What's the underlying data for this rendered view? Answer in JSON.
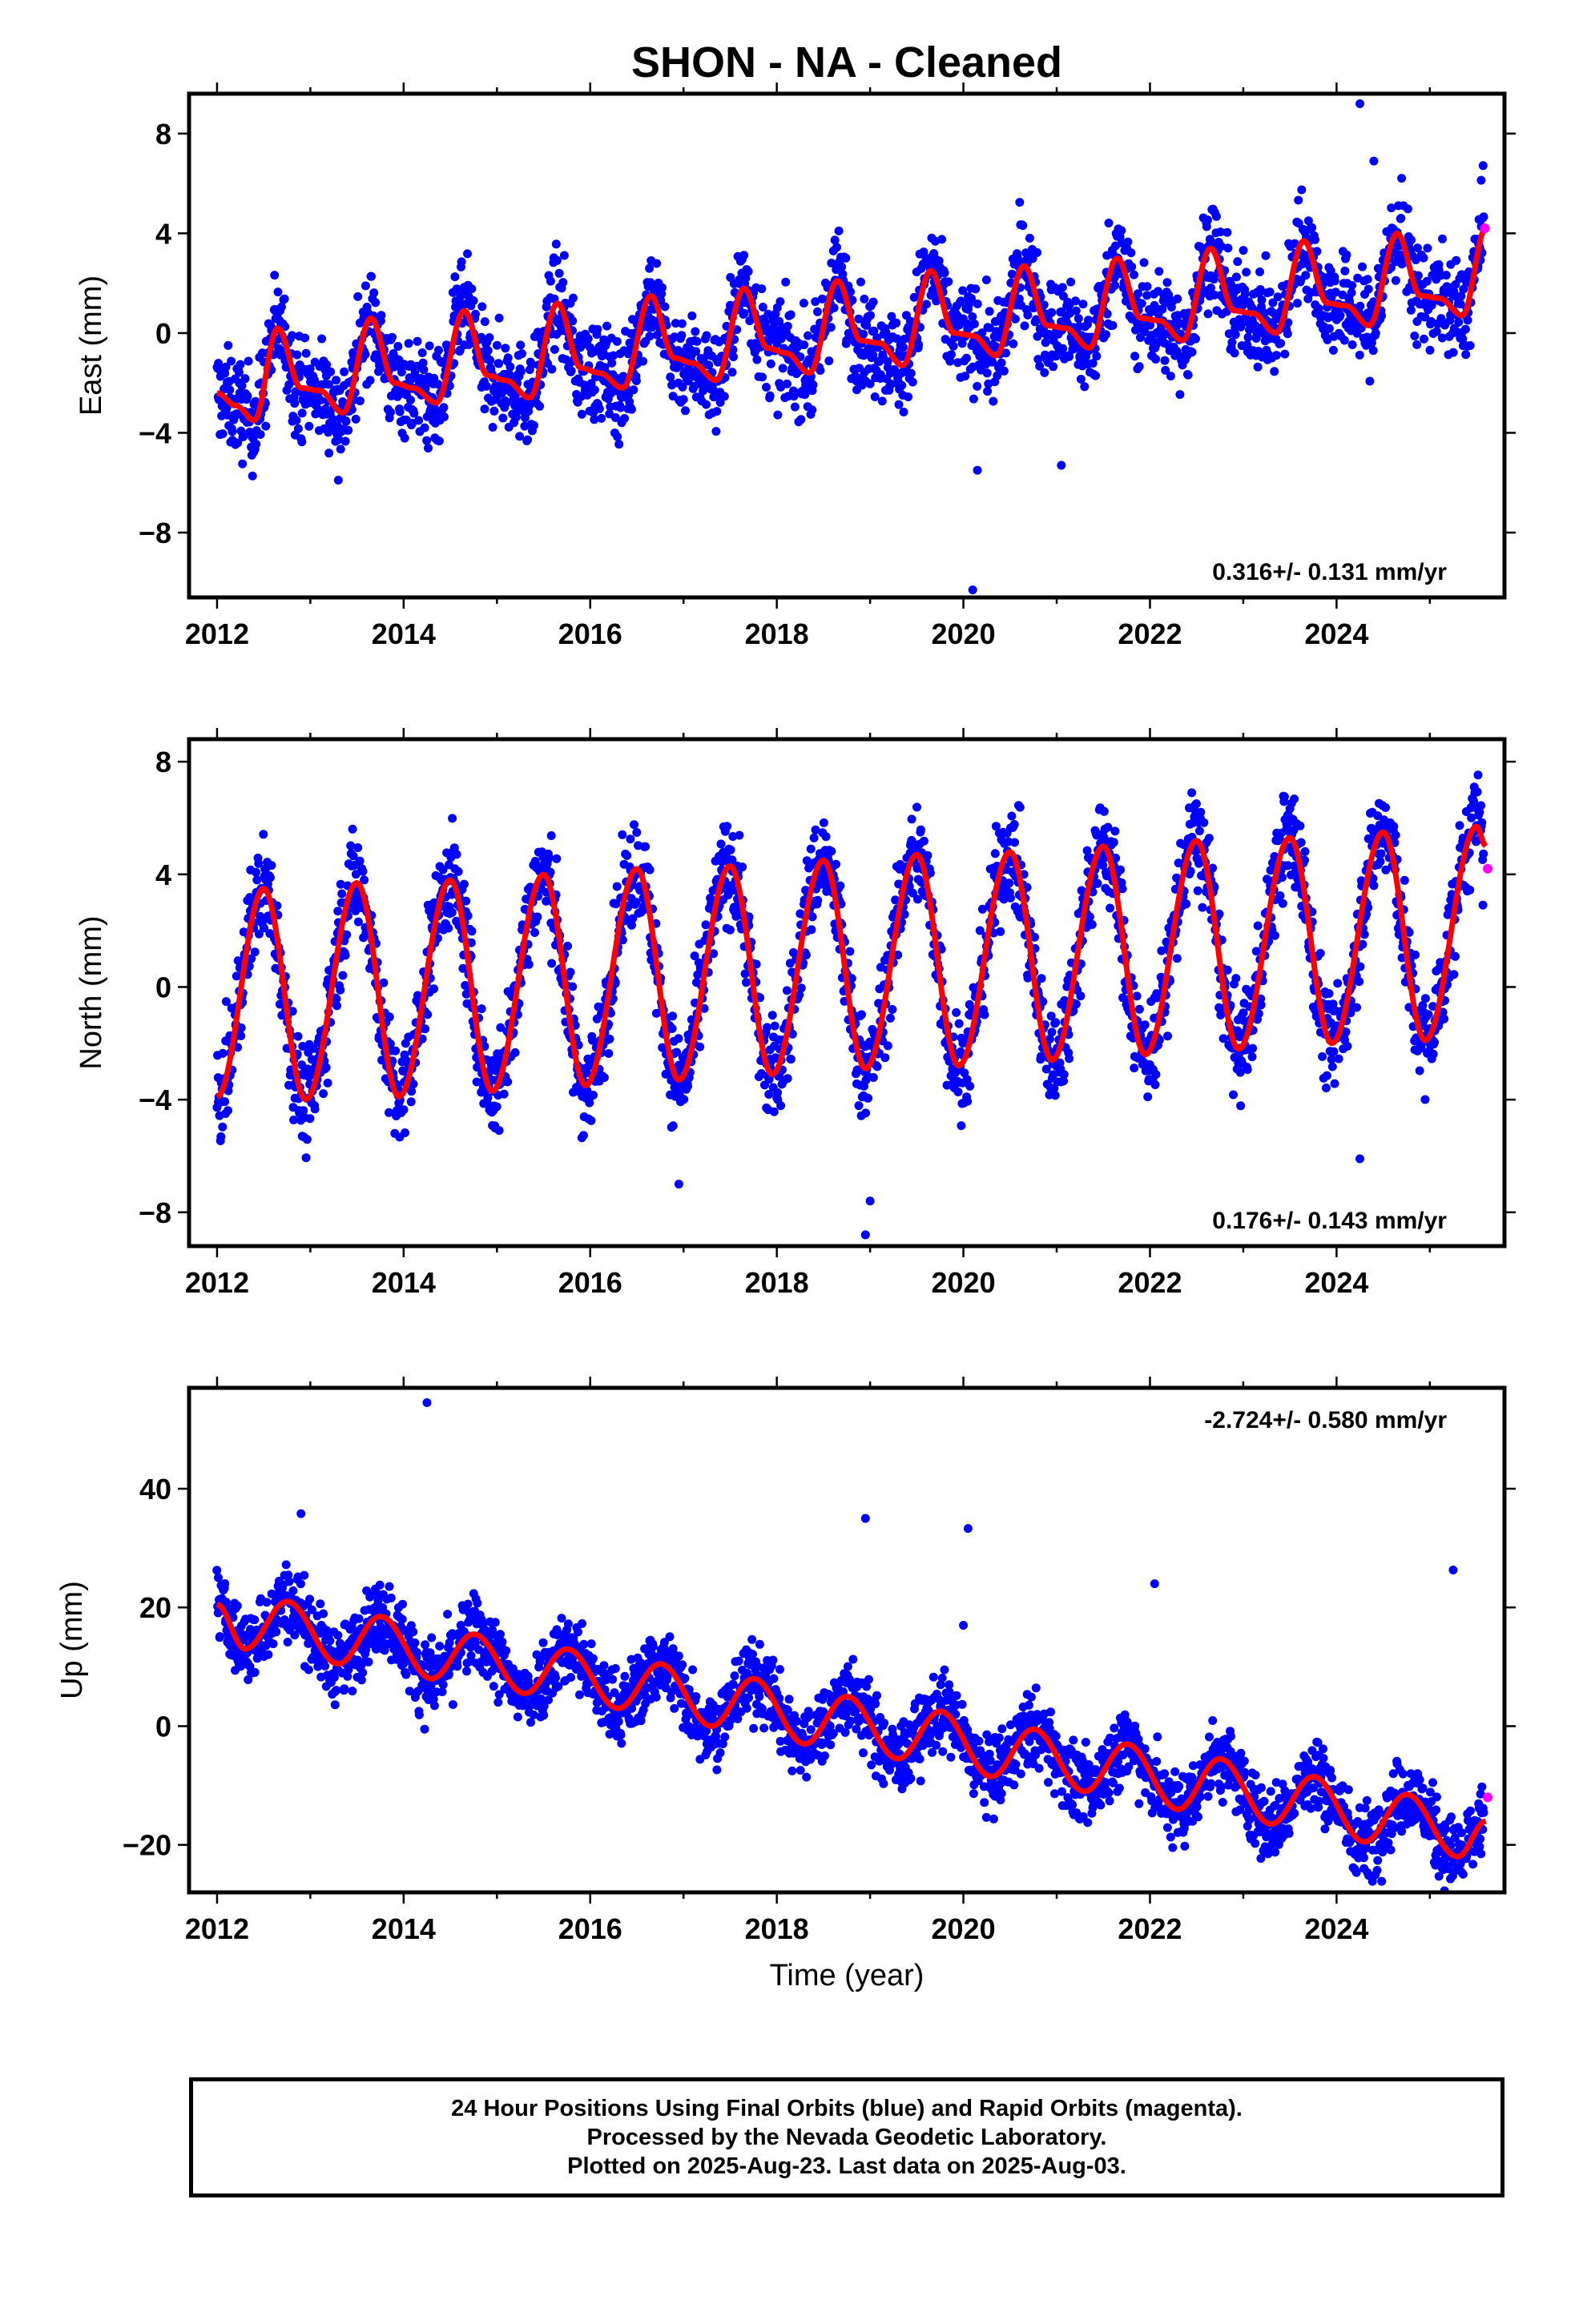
{
  "title": "SHON  - NA - Cleaned",
  "footer": {
    "line1": "24 Hour Positions Using Final Orbits (blue) and Rapid Orbits (magenta).",
    "line2": "Processed by the Nevada Geodetic Laboratory.",
    "line3": "Plotted on 2025-Aug-23. Last data on 2025-Aug-03."
  },
  "colors": {
    "final": "#0000ff",
    "rapid": "#ff00ff",
    "model": "#ff0000",
    "frame": "#000000"
  },
  "chart_data": [
    {
      "type": "scatter",
      "ylabel": "East (mm)",
      "xlabel": "",
      "rate_text": "0.316+/- 0.131 mm/yr",
      "rate_position": "bottom-right",
      "xlim": [
        2011.7,
        2025.8
      ],
      "ylim": [
        -10.6,
        9.6
      ],
      "xticks": [
        2012,
        2014,
        2016,
        2018,
        2020,
        2022,
        2024
      ],
      "xtick_labels": [
        "2012",
        "2014",
        "2016",
        "2018",
        "2020",
        "2022",
        "2024"
      ],
      "yticks": [
        -8,
        -4,
        0,
        4,
        8
      ],
      "ytick_labels": [
        "−8",
        "−4",
        "0",
        "4",
        "8"
      ],
      "model": {
        "x": [
          2012.0,
          2012.2,
          2012.4,
          2012.65,
          2012.9,
          2013.1,
          2013.35,
          2013.65,
          2013.9,
          2014.1,
          2014.35,
          2014.65,
          2014.9,
          2015.1,
          2015.35,
          2015.65,
          2015.9,
          2016.1,
          2016.35,
          2016.65,
          2016.9,
          2017.1,
          2017.35,
          2017.65,
          2017.9,
          2018.1,
          2018.35,
          2018.65,
          2018.9,
          2019.1,
          2019.35,
          2019.65,
          2019.9,
          2020.1,
          2020.35,
          2020.65,
          2020.9,
          2021.1,
          2021.35,
          2021.65,
          2021.9,
          2022.1,
          2022.35,
          2022.65,
          2022.9,
          2023.1,
          2023.35,
          2023.65,
          2023.9,
          2024.1,
          2024.35,
          2024.65,
          2024.9,
          2025.1,
          2025.35,
          2025.6
        ],
        "y": [
          -2.4,
          -2.9,
          -3.5,
          0.2,
          -2.2,
          -2.3,
          -3.2,
          0.6,
          -2.0,
          -2.2,
          -2.8,
          0.9,
          -1.7,
          -1.9,
          -2.6,
          1.2,
          -1.4,
          -1.6,
          -2.2,
          1.5,
          -1.0,
          -1.2,
          -1.9,
          1.8,
          -0.6,
          -0.8,
          -1.6,
          2.1,
          -0.3,
          -0.4,
          -1.3,
          2.5,
          0.0,
          -0.1,
          -0.9,
          2.7,
          0.3,
          0.2,
          -0.6,
          3.0,
          0.6,
          0.5,
          -0.3,
          3.4,
          0.9,
          0.8,
          0.0,
          3.7,
          1.2,
          1.1,
          0.3,
          4.0,
          1.5,
          1.4,
          0.7,
          4.2
        ]
      },
      "scatter_noise": 1.4,
      "outliers": {
        "x": [
          2020.1,
          2020.15,
          2024.25,
          2024.4,
          2013.3,
          2021.05
        ],
        "y": [
          -10.3,
          -5.5,
          9.2,
          6.9,
          -5.9,
          -5.3
        ]
      },
      "rapid_points": {
        "x": [
          2025.59
        ],
        "y": [
          4.2
        ]
      }
    },
    {
      "type": "scatter",
      "ylabel": "North (mm)",
      "xlabel": "",
      "rate_text": "0.176+/- 0.143 mm/yr",
      "rate_position": "bottom-right",
      "xlim": [
        2011.7,
        2025.8
      ],
      "ylim": [
        -9.2,
        8.8
      ],
      "xticks": [
        2012,
        2014,
        2016,
        2018,
        2020,
        2022,
        2024
      ],
      "xtick_labels": [
        "2012",
        "2014",
        "2016",
        "2018",
        "2020",
        "2022",
        "2024"
      ],
      "yticks": [
        -8,
        -4,
        0,
        4,
        8
      ],
      "ytick_labels": [
        "−8",
        "−4",
        "0",
        "4",
        "8"
      ],
      "model": {
        "x": [
          2012.0,
          2012.5,
          2012.95,
          2013.5,
          2013.95,
          2014.5,
          2014.95,
          2015.5,
          2015.95,
          2016.5,
          2016.95,
          2017.5,
          2017.95,
          2018.5,
          2018.95,
          2019.5,
          2019.95,
          2020.5,
          2020.95,
          2021.5,
          2021.95,
          2022.5,
          2022.95,
          2023.5,
          2023.95,
          2024.5,
          2024.95,
          2025.5,
          2025.6
        ],
        "y": [
          -3.9,
          3.5,
          -4.0,
          3.7,
          -3.9,
          3.8,
          -3.7,
          4.0,
          -3.5,
          4.2,
          -3.3,
          4.3,
          -3.1,
          4.5,
          -2.9,
          4.7,
          -2.8,
          4.8,
          -2.6,
          5.0,
          -2.4,
          5.2,
          -2.2,
          5.3,
          -2.0,
          5.5,
          -1.9,
          5.7,
          5.0
        ]
      },
      "scatter_noise": 1.3,
      "outliers": {
        "x": [
          2018.95,
          2019.0,
          2016.95,
          2024.25
        ],
        "y": [
          -8.8,
          -7.6,
          -7.0,
          -6.1
        ]
      },
      "rapid_points": {
        "x": [
          2025.62
        ],
        "y": [
          4.2
        ]
      }
    },
    {
      "type": "scatter",
      "ylabel": "Up (mm)",
      "xlabel": "Time (year)",
      "rate_text": "-2.724+/- 0.580 mm/yr",
      "rate_position": "top-right",
      "xlim": [
        2011.7,
        2025.8
      ],
      "ylim": [
        -28,
        57
      ],
      "xticks": [
        2012,
        2014,
        2016,
        2018,
        2020,
        2022,
        2024
      ],
      "xtick_labels": [
        "2012",
        "2014",
        "2016",
        "2018",
        "2020",
        "2022",
        "2024"
      ],
      "yticks": [
        -20,
        0,
        20,
        40
      ],
      "ytick_labels": [
        "−20",
        "0",
        "20",
        "40"
      ],
      "model": {
        "x": [
          2012.0,
          2012.3,
          2012.75,
          2013.3,
          2013.75,
          2014.3,
          2014.75,
          2015.3,
          2015.75,
          2016.3,
          2016.75,
          2017.3,
          2017.75,
          2018.3,
          2018.75,
          2019.3,
          2019.75,
          2020.3,
          2020.75,
          2021.3,
          2021.75,
          2022.3,
          2022.75,
          2023.3,
          2023.75,
          2024.3,
          2024.75,
          2025.3,
          2025.6
        ],
        "y": [
          20.5,
          13.0,
          21.0,
          10.5,
          18.5,
          8.0,
          15.5,
          5.5,
          13.0,
          3.0,
          10.5,
          0.0,
          8.0,
          -3.0,
          5.0,
          -5.5,
          2.5,
          -8.5,
          -0.5,
          -11.0,
          -3.0,
          -14.0,
          -5.5,
          -16.5,
          -8.5,
          -19.5,
          -11.5,
          -22.0,
          -16.0
        ]
      },
      "scatter_noise": 4.5,
      "outliers": {
        "x": [
          2014.25,
          2018.95,
          2020.05,
          2025.25,
          2022.05,
          2020.0,
          2012.9
        ],
        "y": [
          54.5,
          35.0,
          33.3,
          26.3,
          24.0,
          17.0,
          35.8
        ]
      },
      "rapid_points": {
        "x": [
          2025.62
        ],
        "y": [
          -12.0
        ]
      }
    }
  ]
}
